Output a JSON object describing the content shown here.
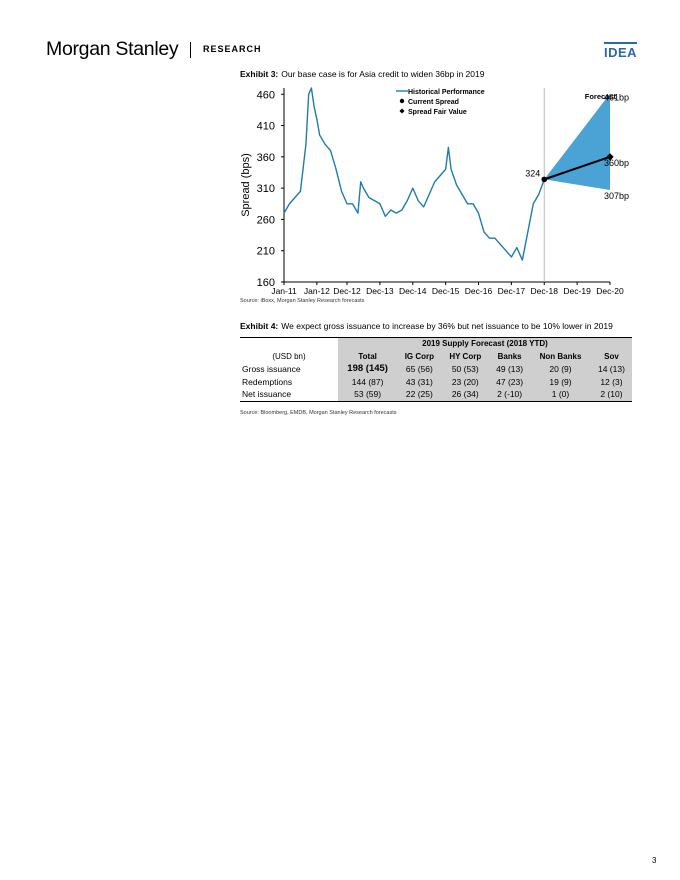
{
  "header": {
    "brand": "Morgan Stanley",
    "section": "RESEARCH",
    "tag": "IDEA"
  },
  "exhibit3": {
    "label": "Exhibit 3:",
    "title": "Our base case is for Asia credit to widen 36bp in 2019",
    "source": "Source: iBoxx, Morgan Stanley Research forecasts"
  },
  "chart_data": {
    "type": "line",
    "ylabel": "Spread (bps)",
    "ylim": [
      160,
      470
    ],
    "yticks": [
      160,
      210,
      260,
      310,
      360,
      410,
      460
    ],
    "xticks": [
      "Jan-11",
      "Jan-12",
      "Dec-12",
      "Dec-13",
      "Dec-14",
      "Dec-15",
      "Dec-16",
      "Dec-17",
      "Dec-18",
      "Dec-19",
      "Dec-20"
    ],
    "legend": [
      "Historical Performance",
      "Current Spread",
      "Spread Fair Value"
    ],
    "legend_position": "top-center",
    "forecast_label": "Forecast",
    "series": [
      {
        "name": "Historical Performance",
        "color": "#1f7bb0",
        "points": [
          [
            "Jan-11",
            270
          ],
          [
            "Mar-11",
            285
          ],
          [
            "May-11",
            295
          ],
          [
            "Jul-11",
            305
          ],
          [
            "Sep-11",
            380
          ],
          [
            "Oct-11",
            460
          ],
          [
            "Nov-11",
            470
          ],
          [
            "Dec-11",
            440
          ],
          [
            "Jan-12",
            420
          ],
          [
            "Feb-12",
            395
          ],
          [
            "Apr-12",
            380
          ],
          [
            "Jun-12",
            370
          ],
          [
            "Aug-12",
            340
          ],
          [
            "Oct-12",
            305
          ],
          [
            "Dec-12",
            285
          ],
          [
            "Feb-13",
            285
          ],
          [
            "Apr-13",
            270
          ],
          [
            "May-13",
            320
          ],
          [
            "Jun-13",
            310
          ],
          [
            "Aug-13",
            295
          ],
          [
            "Oct-13",
            290
          ],
          [
            "Dec-13",
            285
          ],
          [
            "Feb-14",
            265
          ],
          [
            "Apr-14",
            275
          ],
          [
            "Jun-14",
            270
          ],
          [
            "Aug-14",
            275
          ],
          [
            "Oct-14",
            290
          ],
          [
            "Dec-14",
            310
          ],
          [
            "Feb-15",
            290
          ],
          [
            "Apr-15",
            280
          ],
          [
            "Jun-15",
            300
          ],
          [
            "Aug-15",
            320
          ],
          [
            "Oct-15",
            330
          ],
          [
            "Dec-15",
            340
          ],
          [
            "Jan-16",
            375
          ],
          [
            "Feb-16",
            340
          ],
          [
            "Apr-16",
            315
          ],
          [
            "Jun-16",
            300
          ],
          [
            "Aug-16",
            285
          ],
          [
            "Oct-16",
            285
          ],
          [
            "Dec-16",
            270
          ],
          [
            "Feb-17",
            240
          ],
          [
            "Apr-17",
            230
          ],
          [
            "Jun-17",
            230
          ],
          [
            "Aug-17",
            220
          ],
          [
            "Oct-17",
            210
          ],
          [
            "Dec-17",
            200
          ],
          [
            "Feb-18",
            215
          ],
          [
            "Apr-18",
            195
          ],
          [
            "Jun-18",
            240
          ],
          [
            "Aug-18",
            285
          ],
          [
            "Oct-18",
            300
          ],
          [
            "Dec-18",
            324
          ]
        ]
      }
    ],
    "current_spread": {
      "x": "Dec-18",
      "value": 324,
      "label": "324"
    },
    "fair_value": {
      "x": "Dec-20",
      "value": 360,
      "label": "360bp"
    },
    "forecast_range": {
      "x_start": "Dec-18",
      "x_end": "Dec-20",
      "upper": 461,
      "lower": 307,
      "upper_label": "461bp",
      "lower_label": "307bp",
      "color": "#4aa3d4"
    }
  },
  "exhibit4": {
    "label": "Exhibit 4:",
    "title": "We expect gross issuance to increase by 36% but net issuance to be 10% lower in 2019",
    "source": "Source: Bloomberg, EMDB, Morgan Stanley Research forecasts",
    "table": {
      "group_header": "2019 Supply Forecast (2018 YTD)",
      "row_header_label": "(USD bn)",
      "columns": [
        "Total",
        "IG Corp",
        "HY Corp",
        "Banks",
        "Non Banks",
        "Sov"
      ],
      "rows": [
        {
          "label": "Gross issuance",
          "cells": [
            "198 (145)",
            "65 (56)",
            "50 (53)",
            "49 (13)",
            "20 (9)",
            "14 (13)"
          ]
        },
        {
          "label": "Redemptions",
          "cells": [
            "144 (87)",
            "43 (31)",
            "23 (20)",
            "47 (23)",
            "19 (9)",
            "12 (3)"
          ]
        },
        {
          "label": "Net issuance",
          "cells": [
            "53 (59)",
            "22 (25)",
            "26 (34)",
            "2 (-10)",
            "1 (0)",
            "2 (10)"
          ]
        }
      ]
    }
  },
  "page_number": "3"
}
